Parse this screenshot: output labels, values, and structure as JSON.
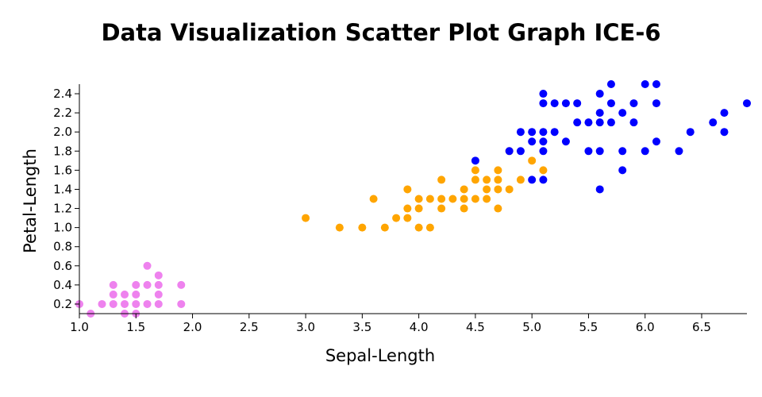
{
  "chart_data": {
    "type": "scatter",
    "title": "Data Visualization Scatter Plot Graph ICE-6",
    "xlabel": "Sepal-Length",
    "ylabel": "Petal-Length",
    "xlim": [
      1.0,
      6.9
    ],
    "ylim": [
      0.1,
      2.5
    ],
    "x_ticks": [
      "1.0",
      "1.5",
      "2.0",
      "2.5",
      "3.0",
      "3.5",
      "4.0",
      "4.5",
      "5.0",
      "5.5",
      "6.0",
      "6.5"
    ],
    "y_ticks": [
      "0.2",
      "0.4",
      "0.6",
      "0.8",
      "1.0",
      "1.2",
      "1.4",
      "1.6",
      "1.8",
      "2.0",
      "2.2",
      "2.4"
    ],
    "grid": false,
    "series": [
      {
        "color": "#ee82ee",
        "points": [
          [
            1.0,
            0.2
          ],
          [
            1.1,
            0.1
          ],
          [
            1.2,
            0.2
          ],
          [
            1.3,
            0.2
          ],
          [
            1.3,
            0.3
          ],
          [
            1.3,
            0.4
          ],
          [
            1.4,
            0.1
          ],
          [
            1.4,
            0.2
          ],
          [
            1.4,
            0.3
          ],
          [
            1.5,
            0.1
          ],
          [
            1.5,
            0.2
          ],
          [
            1.5,
            0.3
          ],
          [
            1.5,
            0.4
          ],
          [
            1.6,
            0.2
          ],
          [
            1.6,
            0.4
          ],
          [
            1.6,
            0.6
          ],
          [
            1.7,
            0.2
          ],
          [
            1.7,
            0.3
          ],
          [
            1.7,
            0.4
          ],
          [
            1.7,
            0.5
          ],
          [
            1.9,
            0.2
          ],
          [
            1.9,
            0.4
          ]
        ]
      },
      {
        "color": "#ffa500",
        "points": [
          [
            3.0,
            1.1
          ],
          [
            3.3,
            1.0
          ],
          [
            3.5,
            1.0
          ],
          [
            3.6,
            1.3
          ],
          [
            3.7,
            1.0
          ],
          [
            3.8,
            1.1
          ],
          [
            3.9,
            1.1
          ],
          [
            3.9,
            1.2
          ],
          [
            3.9,
            1.4
          ],
          [
            4.0,
            1.0
          ],
          [
            4.0,
            1.2
          ],
          [
            4.0,
            1.3
          ],
          [
            4.1,
            1.0
          ],
          [
            4.1,
            1.3
          ],
          [
            4.2,
            1.2
          ],
          [
            4.2,
            1.3
          ],
          [
            4.2,
            1.5
          ],
          [
            4.3,
            1.3
          ],
          [
            4.4,
            1.2
          ],
          [
            4.4,
            1.3
          ],
          [
            4.4,
            1.4
          ],
          [
            4.5,
            1.3
          ],
          [
            4.5,
            1.5
          ],
          [
            4.5,
            1.6
          ],
          [
            4.6,
            1.3
          ],
          [
            4.6,
            1.4
          ],
          [
            4.6,
            1.5
          ],
          [
            4.7,
            1.2
          ],
          [
            4.7,
            1.4
          ],
          [
            4.7,
            1.5
          ],
          [
            4.7,
            1.6
          ],
          [
            4.8,
            1.4
          ],
          [
            4.8,
            1.8
          ],
          [
            4.9,
            1.5
          ],
          [
            5.0,
            1.7
          ],
          [
            5.1,
            1.6
          ]
        ]
      },
      {
        "color": "#0000ff",
        "points": [
          [
            4.5,
            1.7
          ],
          [
            4.8,
            1.8
          ],
          [
            4.9,
            1.8
          ],
          [
            4.9,
            2.0
          ],
          [
            5.0,
            1.5
          ],
          [
            5.0,
            1.9
          ],
          [
            5.0,
            2.0
          ],
          [
            5.1,
            1.5
          ],
          [
            5.1,
            1.8
          ],
          [
            5.1,
            1.9
          ],
          [
            5.1,
            2.0
          ],
          [
            5.1,
            2.3
          ],
          [
            5.1,
            2.4
          ],
          [
            5.2,
            2.0
          ],
          [
            5.2,
            2.3
          ],
          [
            5.3,
            1.9
          ],
          [
            5.3,
            2.3
          ],
          [
            5.4,
            2.1
          ],
          [
            5.4,
            2.3
          ],
          [
            5.5,
            1.8
          ],
          [
            5.5,
            2.1
          ],
          [
            5.6,
            1.4
          ],
          [
            5.6,
            1.8
          ],
          [
            5.6,
            2.1
          ],
          [
            5.6,
            2.2
          ],
          [
            5.6,
            2.4
          ],
          [
            5.7,
            2.1
          ],
          [
            5.7,
            2.3
          ],
          [
            5.7,
            2.5
          ],
          [
            5.8,
            1.6
          ],
          [
            5.8,
            1.8
          ],
          [
            5.8,
            2.2
          ],
          [
            5.9,
            2.1
          ],
          [
            5.9,
            2.3
          ],
          [
            6.0,
            1.8
          ],
          [
            6.0,
            2.5
          ],
          [
            6.1,
            1.9
          ],
          [
            6.1,
            2.3
          ],
          [
            6.1,
            2.5
          ],
          [
            6.3,
            1.8
          ],
          [
            6.4,
            2.0
          ],
          [
            6.6,
            2.1
          ],
          [
            6.7,
            2.0
          ],
          [
            6.7,
            2.2
          ],
          [
            6.9,
            2.3
          ]
        ]
      }
    ]
  }
}
